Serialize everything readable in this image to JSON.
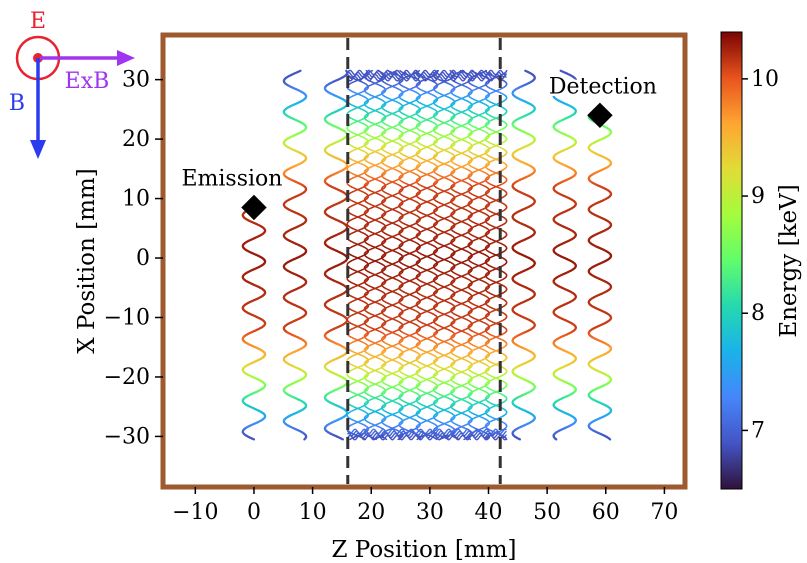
{
  "chart_data": {
    "type": "line",
    "xlabel": "Z Position [mm]",
    "ylabel": "X Position [mm]",
    "xlim": [
      -15,
      73
    ],
    "ylim": [
      -38,
      37
    ],
    "xticks": [
      -10,
      0,
      10,
      20,
      30,
      40,
      50,
      60,
      70
    ],
    "yticks": [
      -30,
      -20,
      -10,
      0,
      10,
      20,
      30
    ],
    "grid": false,
    "region_lines_x": [
      16,
      42
    ],
    "emission": {
      "label": "Emission",
      "x": 0,
      "y": 8.5
    },
    "detection": {
      "label": "Detection",
      "x": 59,
      "y": 24
    },
    "colorbar": {
      "label": "Energy [keV]",
      "min": 6.5,
      "max": 10.4,
      "ticks": [
        7,
        8,
        9,
        10
      ]
    },
    "energy_profile": {
      "x": [
        -30,
        -24,
        -18,
        -12,
        0,
        12,
        18,
        24,
        30
      ],
      "energy": [
        6.9,
        8.1,
        9.3,
        10.1,
        10.3,
        10.1,
        9.3,
        8.1,
        6.9
      ]
    },
    "trajectories": [
      {
        "z_center": 0,
        "x_start": 8.5,
        "x_end": -30.5,
        "direction": "down"
      },
      {
        "z_center": 7,
        "x_start": -30.5,
        "x_end": 31.5,
        "direction": "up"
      },
      {
        "z_center": 14,
        "x_start": 31.5,
        "x_end": -30.5,
        "direction": "down"
      },
      {
        "z_center": 46,
        "x_start": 31.5,
        "x_end": -30.5,
        "direction": "up"
      },
      {
        "z_center": 53,
        "x_start": -30.5,
        "x_end": 31.5,
        "direction": "down"
      },
      {
        "z_center": 59,
        "x_start": 24,
        "x_end": -30.5,
        "direction": "up"
      }
    ],
    "oscillation_region": {
      "z_min": 16.5,
      "z_max": 42.5,
      "x_min": -30.5,
      "x_max": 31.5
    }
  },
  "field_diagram": {
    "e_label": "E",
    "b_label": "B",
    "exb_label": "ExB",
    "e_color": "#e8222e",
    "b_color": "#2b3bf0",
    "exb_color": "#a034f0"
  },
  "colors": {
    "frame": "#9c5a2e",
    "region_lines": "#333333",
    "markers": "#000000"
  }
}
